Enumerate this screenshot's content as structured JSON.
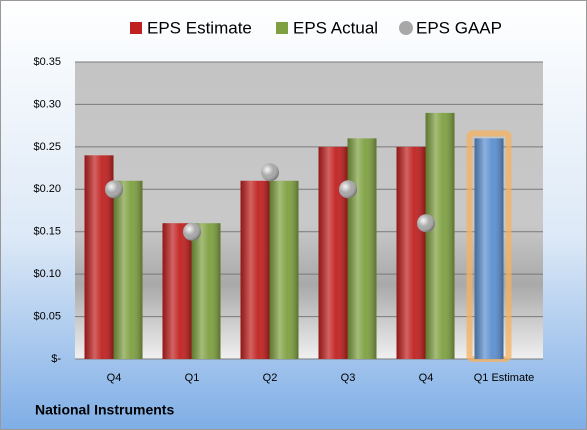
{
  "chart_data": {
    "type": "bar",
    "title": "National Instruments",
    "categories": [
      "Q4",
      "Q1",
      "Q2",
      "Q3",
      "Q4",
      "Q1 Estimate"
    ],
    "series": [
      {
        "name": "EPS Estimate",
        "color": "#c0201f",
        "values": [
          0.24,
          0.16,
          0.21,
          0.25,
          0.25,
          0.26
        ],
        "colors": [
          "#c0201f",
          "#c0201f",
          "#c0201f",
          "#c0201f",
          "#c0201f",
          "#5b8fd0"
        ]
      },
      {
        "name": "EPS Actual",
        "color": "#7ea040",
        "values": [
          0.21,
          0.16,
          0.21,
          0.26,
          0.29,
          null
        ]
      },
      {
        "name": "EPS GAAP",
        "color": "#a8a8a8",
        "values": [
          0.2,
          0.15,
          0.22,
          0.2,
          0.16,
          null
        ]
      }
    ],
    "ylim": [
      0,
      0.35
    ],
    "yticks": [
      {
        "value": 0,
        "label": "$-"
      },
      {
        "value": 0.05,
        "label": "$0.05"
      },
      {
        "value": 0.1,
        "label": "$0.10"
      },
      {
        "value": 0.15,
        "label": "$0.15"
      },
      {
        "value": 0.2,
        "label": "$0.20"
      },
      {
        "value": 0.25,
        "label": "$0.25"
      },
      {
        "value": 0.3,
        "label": "$0.30"
      },
      {
        "value": 0.35,
        "label": "$0.35"
      }
    ],
    "grid": true
  }
}
